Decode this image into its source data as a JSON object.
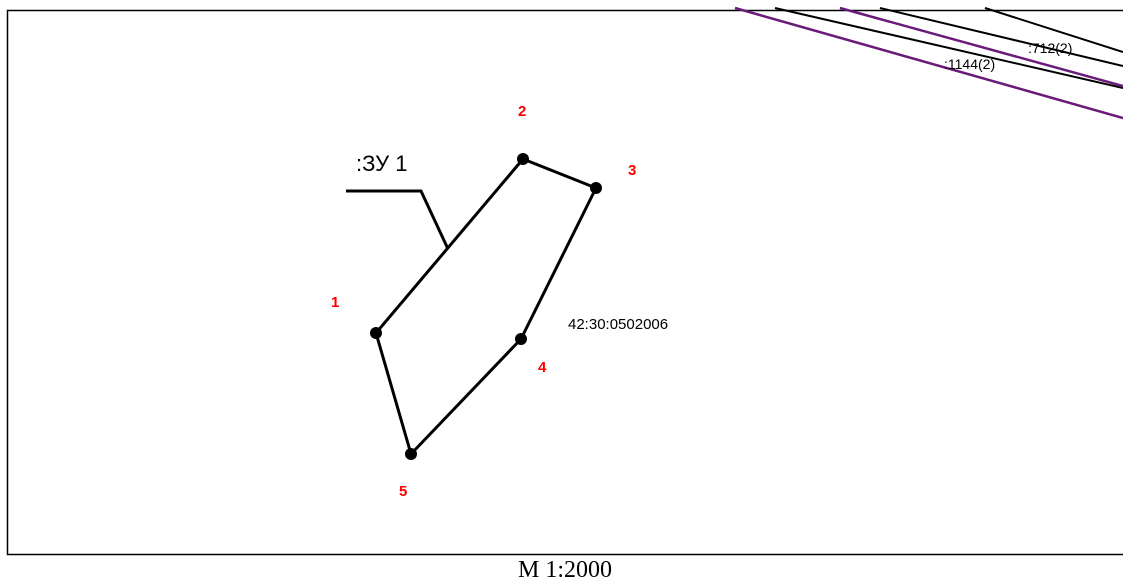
{
  "plan": {
    "parcel_label": ":ЗУ 1",
    "block_number": "42:30:0502006",
    "scale": "М 1:2000",
    "vertices": [
      {
        "id": "1",
        "label": "1"
      },
      {
        "id": "2",
        "label": "2"
      },
      {
        "id": "3",
        "label": "3"
      },
      {
        "id": "4",
        "label": "4"
      },
      {
        "id": "5",
        "label": "5"
      }
    ],
    "neighbors": [
      {
        "label": ":1144(2)"
      },
      {
        "label": ":712(2)"
      }
    ]
  },
  "colors": {
    "vertex_label": "#ff0000",
    "parcel_outline": "#000000",
    "neighbor_boundary": "#6a1b7a",
    "frame": "#000000"
  }
}
